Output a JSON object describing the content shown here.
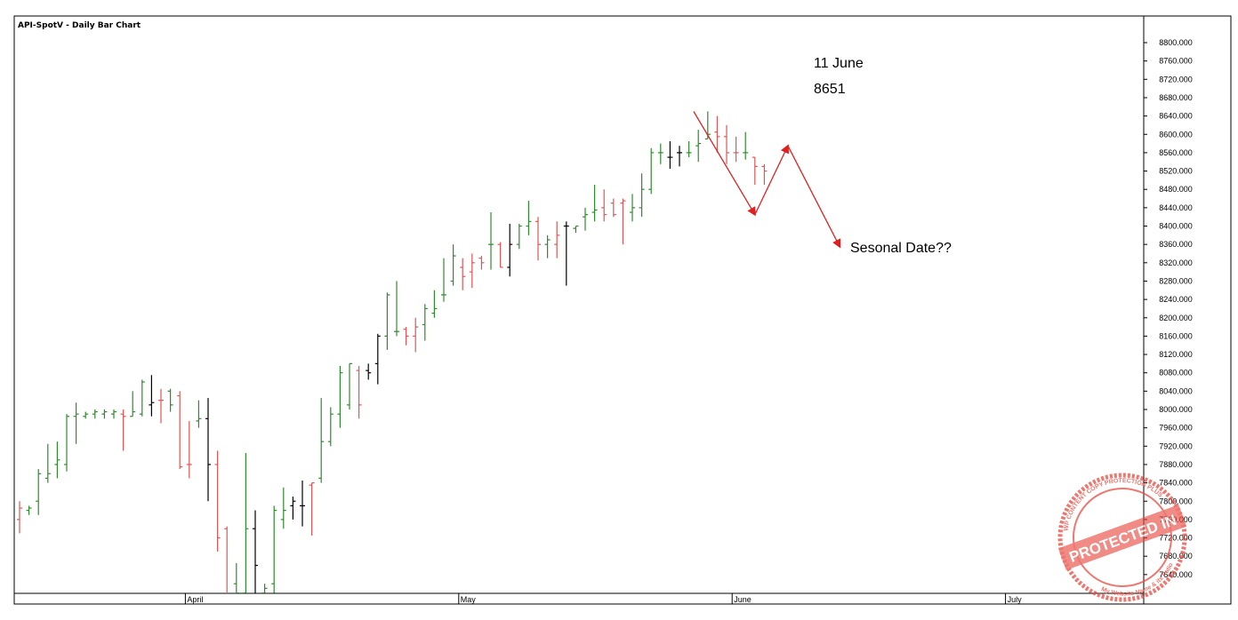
{
  "chart_data": {
    "type": "bar",
    "subtype": "ohlc",
    "title": "API-SpotV - Daily Bar Chart",
    "xlabel": "",
    "ylabel": "",
    "ylim": [
      7600,
      8840
    ],
    "y_ticks": [
      "8800.000",
      "8760.000",
      "8720.000",
      "8680.000",
      "8640.000",
      "8600.000",
      "8560.000",
      "8520.000",
      "8480.000",
      "8440.000",
      "8400.000",
      "8360.000",
      "8320.000",
      "8280.000",
      "8240.000",
      "8200.000",
      "8160.000",
      "8120.000",
      "8080.000",
      "8040.000",
      "8000.000",
      "7960.000",
      "7920.000",
      "7880.000",
      "7840.000",
      "7800.000",
      "7760.000",
      "7720.000",
      "7680.000",
      "7640.000"
    ],
    "x_month_labels": [
      "April",
      "May",
      "June",
      "July"
    ],
    "x_month_label_index": [
      19,
      48,
      77,
      106
    ],
    "grid": false,
    "colors": {
      "up": "#2e8b2e",
      "down": "#e05555",
      "neutral": "#000000",
      "annotation": "#e02020"
    },
    "series": [
      {
        "values": [
          {
            "o": 7760,
            "h": 7800,
            "l": 7730,
            "c": 7785,
            "dir": "down"
          },
          {
            "o": 7780,
            "h": 7790,
            "l": 7770,
            "c": 7785,
            "dir": "up"
          },
          {
            "o": 7800,
            "h": 7870,
            "l": 7770,
            "c": 7860,
            "dir": "up"
          },
          {
            "o": 7850,
            "h": 7925,
            "l": 7840,
            "c": 7860,
            "dir": "up"
          },
          {
            "o": 7880,
            "h": 7930,
            "l": 7850,
            "c": 7890,
            "dir": "up"
          },
          {
            "o": 7880,
            "h": 7990,
            "l": 7865,
            "c": 7985,
            "dir": "up"
          },
          {
            "o": 7985,
            "h": 8015,
            "l": 7925,
            "c": 7990,
            "dir": "up"
          },
          {
            "o": 7985,
            "h": 7995,
            "l": 7980,
            "c": 7990,
            "dir": "up"
          },
          {
            "o": 7990,
            "h": 8000,
            "l": 7980,
            "c": 7995,
            "dir": "up"
          },
          {
            "o": 7990,
            "h": 8000,
            "l": 7980,
            "c": 7995,
            "dir": "up"
          },
          {
            "o": 7990,
            "h": 8000,
            "l": 7980,
            "c": 7995,
            "dir": "up"
          },
          {
            "o": 7990,
            "h": 8000,
            "l": 7910,
            "c": 7985,
            "dir": "down"
          },
          {
            "o": 7985,
            "h": 8040,
            "l": 7985,
            "c": 7995,
            "dir": "up"
          },
          {
            "o": 7990,
            "h": 8065,
            "l": 7985,
            "c": 8060,
            "dir": "up"
          },
          {
            "o": 8010,
            "h": 8075,
            "l": 7985,
            "c": 8015,
            "dir": "neutral"
          },
          {
            "o": 8020,
            "h": 8045,
            "l": 7970,
            "c": 8020,
            "dir": "down"
          },
          {
            "o": 8040,
            "h": 8045,
            "l": 7995,
            "c": 8010,
            "dir": "up"
          },
          {
            "o": 8030,
            "h": 8040,
            "l": 7870,
            "c": 7875,
            "dir": "down"
          },
          {
            "o": 7880,
            "h": 7975,
            "l": 7850,
            "c": 7880,
            "dir": "down"
          },
          {
            "o": 7975,
            "h": 8020,
            "l": 7960,
            "c": 7980,
            "dir": "up"
          },
          {
            "o": 7980,
            "h": 8025,
            "l": 7800,
            "c": 7880,
            "dir": "neutral"
          },
          {
            "o": 7880,
            "h": 7910,
            "l": 7690,
            "c": 7720,
            "dir": "down"
          },
          {
            "o": 7740,
            "h": 7745,
            "l": 7560,
            "c": 7570,
            "dir": "down"
          },
          {
            "o": 7620,
            "h": 7665,
            "l": 7560,
            "c": 7600,
            "dir": "up"
          },
          {
            "o": 7600,
            "h": 7905,
            "l": 7600,
            "c": 7740,
            "dir": "up"
          },
          {
            "o": 7740,
            "h": 7780,
            "l": 7600,
            "c": 7660,
            "dir": "neutral"
          },
          {
            "o": 7600,
            "h": 7620,
            "l": 7600,
            "c": 7610,
            "dir": "up"
          },
          {
            "o": 7620,
            "h": 7790,
            "l": 7600,
            "c": 7780,
            "dir": "up"
          },
          {
            "o": 7760,
            "h": 7830,
            "l": 7740,
            "c": 7780,
            "dir": "up"
          },
          {
            "o": 7790,
            "h": 7810,
            "l": 7760,
            "c": 7800,
            "dir": "neutral"
          },
          {
            "o": 7790,
            "h": 7845,
            "l": 7745,
            "c": 7790,
            "dir": "neutral"
          },
          {
            "o": 7835,
            "h": 7840,
            "l": 7725,
            "c": 7840,
            "dir": "down"
          },
          {
            "o": 7850,
            "h": 8025,
            "l": 7840,
            "c": 7930,
            "dir": "up"
          },
          {
            "o": 7930,
            "h": 8005,
            "l": 7920,
            "c": 7990,
            "dir": "up"
          },
          {
            "o": 7990,
            "h": 8095,
            "l": 7960,
            "c": 8080,
            "dir": "up"
          },
          {
            "o": 8010,
            "h": 8100,
            "l": 8000,
            "c": 8100,
            "dir": "up"
          },
          {
            "o": 8085,
            "h": 8095,
            "l": 7980,
            "c": 8010,
            "dir": "down"
          },
          {
            "o": 8085,
            "h": 8100,
            "l": 8065,
            "c": 8080,
            "dir": "neutral"
          },
          {
            "o": 8100,
            "h": 8165,
            "l": 8055,
            "c": 8160,
            "dir": "neutral"
          },
          {
            "o": 8160,
            "h": 8255,
            "l": 8130,
            "c": 8250,
            "dir": "up"
          },
          {
            "o": 8170,
            "h": 8280,
            "l": 8160,
            "c": 8170,
            "dir": "up"
          },
          {
            "o": 8175,
            "h": 8180,
            "l": 8140,
            "c": 8160,
            "dir": "down"
          },
          {
            "o": 8160,
            "h": 8200,
            "l": 8125,
            "c": 8180,
            "dir": "down"
          },
          {
            "o": 8185,
            "h": 8230,
            "l": 8150,
            "c": 8220,
            "dir": "up"
          },
          {
            "o": 8210,
            "h": 8260,
            "l": 8200,
            "c": 8220,
            "dir": "up"
          },
          {
            "o": 8250,
            "h": 8330,
            "l": 8235,
            "c": 8250,
            "dir": "up"
          },
          {
            "o": 8280,
            "h": 8360,
            "l": 8270,
            "c": 8335,
            "dir": "up"
          },
          {
            "o": 8310,
            "h": 8330,
            "l": 8260,
            "c": 8290,
            "dir": "down"
          },
          {
            "o": 8300,
            "h": 8340,
            "l": 8265,
            "c": 8320,
            "dir": "down"
          },
          {
            "o": 8330,
            "h": 8335,
            "l": 8305,
            "c": 8320,
            "dir": "down"
          },
          {
            "o": 8360,
            "h": 8430,
            "l": 8305,
            "c": 8360,
            "dir": "up"
          },
          {
            "o": 8360,
            "h": 8365,
            "l": 8310,
            "c": 8310,
            "dir": "down"
          },
          {
            "o": 8310,
            "h": 8405,
            "l": 8290,
            "c": 8360,
            "dir": "neutral"
          },
          {
            "o": 8360,
            "h": 8405,
            "l": 8350,
            "c": 8400,
            "dir": "up"
          },
          {
            "o": 8400,
            "h": 8455,
            "l": 8380,
            "c": 8410,
            "dir": "up"
          },
          {
            "o": 8410,
            "h": 8420,
            "l": 8325,
            "c": 8360,
            "dir": "down"
          },
          {
            "o": 8360,
            "h": 8380,
            "l": 8330,
            "c": 8370,
            "dir": "up"
          },
          {
            "o": 8360,
            "h": 8410,
            "l": 8330,
            "c": 8380,
            "dir": "down"
          },
          {
            "o": 8400,
            "h": 8410,
            "l": 8270,
            "c": 8400,
            "dir": "neutral"
          },
          {
            "o": 8395,
            "h": 8400,
            "l": 8385,
            "c": 8400,
            "dir": "up"
          },
          {
            "o": 8420,
            "h": 8440,
            "l": 8390,
            "c": 8425,
            "dir": "up"
          },
          {
            "o": 8430,
            "h": 8490,
            "l": 8410,
            "c": 8435,
            "dir": "up"
          },
          {
            "o": 8440,
            "h": 8480,
            "l": 8410,
            "c": 8425,
            "dir": "down"
          },
          {
            "o": 8450,
            "h": 8460,
            "l": 8420,
            "c": 8425,
            "dir": "down"
          },
          {
            "o": 8450,
            "h": 8460,
            "l": 8360,
            "c": 8455,
            "dir": "down"
          },
          {
            "o": 8430,
            "h": 8470,
            "l": 8410,
            "c": 8440,
            "dir": "up"
          },
          {
            "o": 8440,
            "h": 8515,
            "l": 8420,
            "c": 8480,
            "dir": "up"
          },
          {
            "o": 8480,
            "h": 8570,
            "l": 8470,
            "c": 8560,
            "dir": "up"
          },
          {
            "o": 8560,
            "h": 8580,
            "l": 8535,
            "c": 8560,
            "dir": "up"
          },
          {
            "o": 8550,
            "h": 8585,
            "l": 8525,
            "c": 8550,
            "dir": "neutral"
          },
          {
            "o": 8560,
            "h": 8575,
            "l": 8530,
            "c": 8560,
            "dir": "neutral"
          },
          {
            "o": 8560,
            "h": 8585,
            "l": 8550,
            "c": 8560,
            "dir": "up"
          },
          {
            "o": 8575,
            "h": 8610,
            "l": 8540,
            "c": 8580,
            "dir": "up"
          },
          {
            "o": 8590,
            "h": 8650,
            "l": 8590,
            "c": 8600,
            "dir": "up"
          },
          {
            "o": 8605,
            "h": 8640,
            "l": 8560,
            "c": 8595,
            "dir": "down"
          },
          {
            "o": 8595,
            "h": 8620,
            "l": 8535,
            "c": 8560,
            "dir": "down"
          },
          {
            "o": 8560,
            "h": 8595,
            "l": 8540,
            "c": 8560,
            "dir": "down"
          },
          {
            "o": 8560,
            "h": 8605,
            "l": 8545,
            "c": 8560,
            "dir": "up"
          },
          {
            "o": 8550,
            "h": 8550,
            "l": 8490,
            "c": 8530,
            "dir": "down"
          },
          {
            "o": 8530,
            "h": 8535,
            "l": 8490,
            "c": 8520,
            "dir": "down"
          }
        ]
      }
    ],
    "annotations": {
      "date": "11 June",
      "price": "8651",
      "note": "Sesonal Date??"
    },
    "projection_path": [
      {
        "i": 71.5,
        "v": 8650
      },
      {
        "i": 78.0,
        "v": 8425
      },
      {
        "i": 81.5,
        "v": 8575
      },
      {
        "i": 87.0,
        "v": 8355
      }
    ]
  },
  "stamp": {
    "line1": "WP CONTENT COPY PROTECTION PLUS",
    "line2": "PROTECTED IN",
    "line3": "My Website Name & its Ratio"
  }
}
